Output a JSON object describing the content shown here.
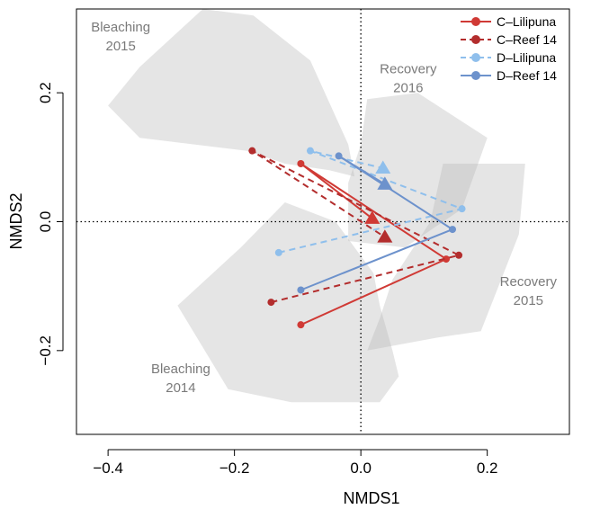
{
  "chart_data": {
    "type": "scatter",
    "title": "",
    "xlabel": "NMDS1",
    "ylabel": "NMDS2",
    "xlim": [
      -0.45,
      0.33
    ],
    "ylim": [
      -0.33,
      0.33
    ],
    "x_ticks": [
      -0.4,
      -0.2,
      0.0,
      0.2
    ],
    "y_ticks": [
      -0.2,
      0.0,
      0.2
    ],
    "x_tick_labels": [
      "−0.4",
      "−0.2",
      "0.0",
      "0.2"
    ],
    "y_tick_labels": [
      "−0.2",
      "0.0",
      "0.2"
    ],
    "reference_lines": {
      "x": 0,
      "y": 0,
      "style": "dotted"
    },
    "grid": false,
    "legend_position": "top-right",
    "regions": [
      {
        "label_lines": [
          "Bleaching",
          "2015"
        ],
        "label_at": [
          -0.38,
          0.295
        ],
        "polygon": [
          [
            -0.25,
            0.33
          ],
          [
            -0.17,
            0.32
          ],
          [
            -0.08,
            0.25
          ],
          [
            -0.02,
            0.12
          ],
          [
            -0.01,
            0.07
          ],
          [
            -0.05,
            0.08
          ],
          [
            -0.12,
            0.09
          ],
          [
            -0.18,
            0.11
          ],
          [
            -0.35,
            0.13
          ],
          [
            -0.4,
            0.18
          ],
          [
            -0.35,
            0.24
          ]
        ]
      },
      {
        "label_lines": [
          "Recovery",
          "2016"
        ],
        "label_at": [
          0.075,
          0.23
        ],
        "polygon": [
          [
            0.01,
            0.19
          ],
          [
            0.09,
            0.2
          ],
          [
            0.2,
            0.13
          ],
          [
            0.16,
            0.02
          ],
          [
            0.07,
            -0.04
          ],
          [
            -0.02,
            -0.03
          ],
          [
            -0.02,
            0.06
          ],
          [
            0.0,
            0.12
          ]
        ]
      },
      {
        "label_lines": [
          "Recovery",
          "2015"
        ],
        "label_at": [
          0.265,
          -0.1
        ],
        "polygon": [
          [
            0.13,
            0.09
          ],
          [
            0.26,
            0.09
          ],
          [
            0.25,
            -0.02
          ],
          [
            0.19,
            -0.17
          ],
          [
            0.12,
            -0.18
          ],
          [
            0.01,
            -0.2
          ],
          [
            0.03,
            -0.15
          ],
          [
            0.05,
            -0.09
          ],
          [
            0.11,
            0.0
          ]
        ]
      },
      {
        "label_lines": [
          "Bleaching",
          "2014"
        ],
        "label_at": [
          -0.285,
          -0.235
        ],
        "polygon": [
          [
            -0.12,
            0.03
          ],
          [
            -0.04,
            0.0
          ],
          [
            0.02,
            -0.08
          ],
          [
            0.03,
            -0.13
          ],
          [
            0.05,
            -0.2
          ],
          [
            0.06,
            -0.24
          ],
          [
            0.03,
            -0.28
          ],
          [
            -0.11,
            -0.28
          ],
          [
            -0.21,
            -0.26
          ],
          [
            -0.29,
            -0.13
          ],
          [
            -0.19,
            -0.04
          ]
        ]
      }
    ],
    "series": [
      {
        "name": "C–Lilipuna",
        "color": "#d03a35",
        "line_style": "solid",
        "points": [
          [
            -0.095,
            -0.16
          ],
          [
            0.135,
            -0.058
          ],
          [
            -0.095,
            0.09
          ],
          [
            0.018,
            0.005
          ]
        ]
      },
      {
        "name": "C–Reef 14",
        "color": "#b32d2d",
        "line_style": "dashed",
        "points": [
          [
            -0.142,
            -0.125
          ],
          [
            0.155,
            -0.052
          ],
          [
            -0.172,
            0.11
          ],
          [
            0.038,
            -0.024
          ]
        ]
      },
      {
        "name": "D–Lilipuna",
        "color": "#8fbfec",
        "line_style": "dashed",
        "points": [
          [
            -0.13,
            -0.048
          ],
          [
            0.16,
            0.02
          ],
          [
            -0.08,
            0.11
          ],
          [
            0.035,
            0.083
          ]
        ]
      },
      {
        "name": "D–Reef 14",
        "color": "#6d92cc",
        "line_style": "solid",
        "points": [
          [
            -0.095,
            -0.106
          ],
          [
            0.145,
            -0.012
          ],
          [
            -0.035,
            0.102
          ],
          [
            0.038,
            0.058
          ]
        ]
      }
    ]
  }
}
